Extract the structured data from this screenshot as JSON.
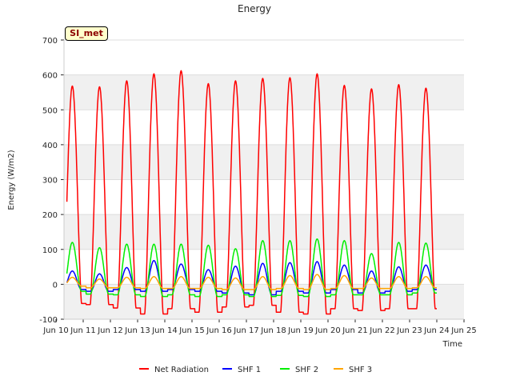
{
  "chart_data": {
    "type": "line",
    "title": "Energy",
    "xlabel": "Time",
    "ylabel": "Energy (W/m2)",
    "badge": "SI_met",
    "ylim": [
      -100,
      700
    ],
    "xlim": [
      10,
      25
    ],
    "yticks": [
      -100,
      0,
      100,
      200,
      300,
      400,
      500,
      600,
      700
    ],
    "xticks": [
      {
        "v": 10,
        "label": "Jun 10"
      },
      {
        "v": 11,
        "label": "Jun 11"
      },
      {
        "v": 12,
        "label": "Jun 12"
      },
      {
        "v": 13,
        "label": "Jun 13"
      },
      {
        "v": 14,
        "label": "Jun 14"
      },
      {
        "v": 15,
        "label": "Jun 15"
      },
      {
        "v": 16,
        "label": "Jun 16"
      },
      {
        "v": 17,
        "label": "Jun 17"
      },
      {
        "v": 18,
        "label": "Jun 18"
      },
      {
        "v": 19,
        "label": "Jun 19"
      },
      {
        "v": 20,
        "label": "Jun 20"
      },
      {
        "v": 21,
        "label": "Jun 21"
      },
      {
        "v": 22,
        "label": "Jun 22"
      },
      {
        "v": 23,
        "label": "Jun 23"
      },
      {
        "v": 24,
        "label": "Jun 24"
      },
      {
        "v": 25,
        "label": "Jun 25"
      }
    ],
    "grid": true,
    "legend_position": "bottom",
    "days": [
      10.6,
      11.6,
      12.6,
      13.6,
      14.6,
      15.6,
      16.6,
      17.6,
      18.6,
      19.6,
      20.6,
      21.6,
      22.6,
      23.6
    ],
    "series": [
      {
        "name": "Net Radiation",
        "color": "#ff0000",
        "peaks": [
          568,
          566,
          583,
          603,
          612,
          575,
          583,
          590,
          592,
          603,
          570,
          560,
          572,
          562
        ],
        "nights": [
          -55,
          -58,
          -68,
          -85,
          -70,
          -80,
          -65,
          -60,
          -80,
          -85,
          -70,
          -75,
          -70,
          -70
        ]
      },
      {
        "name": "SHF 1",
        "color": "#0000ff",
        "peaks": [
          38,
          30,
          48,
          68,
          58,
          42,
          52,
          60,
          62,
          65,
          55,
          38,
          50,
          55
        ],
        "nights": [
          -15,
          -20,
          -15,
          -20,
          -15,
          -20,
          -25,
          -30,
          -20,
          -25,
          -15,
          -25,
          -20,
          -15
        ]
      },
      {
        "name": "SHF 2",
        "color": "#00ee00",
        "peaks": [
          120,
          105,
          115,
          115,
          115,
          112,
          102,
          125,
          125,
          130,
          125,
          88,
          120,
          118
        ],
        "nights": [
          -20,
          -28,
          -30,
          -35,
          -30,
          -35,
          -30,
          -35,
          -32,
          -35,
          -30,
          -30,
          -30,
          -25
        ]
      },
      {
        "name": "SHF 3",
        "color": "#ffa500",
        "peaks": [
          20,
          15,
          20,
          22,
          22,
          20,
          18,
          22,
          25,
          28,
          25,
          18,
          22,
          22
        ],
        "nights": [
          -5,
          -10,
          -10,
          -12,
          -12,
          -12,
          -15,
          -15,
          -12,
          -15,
          -12,
          -12,
          -12,
          -10
        ]
      }
    ]
  }
}
